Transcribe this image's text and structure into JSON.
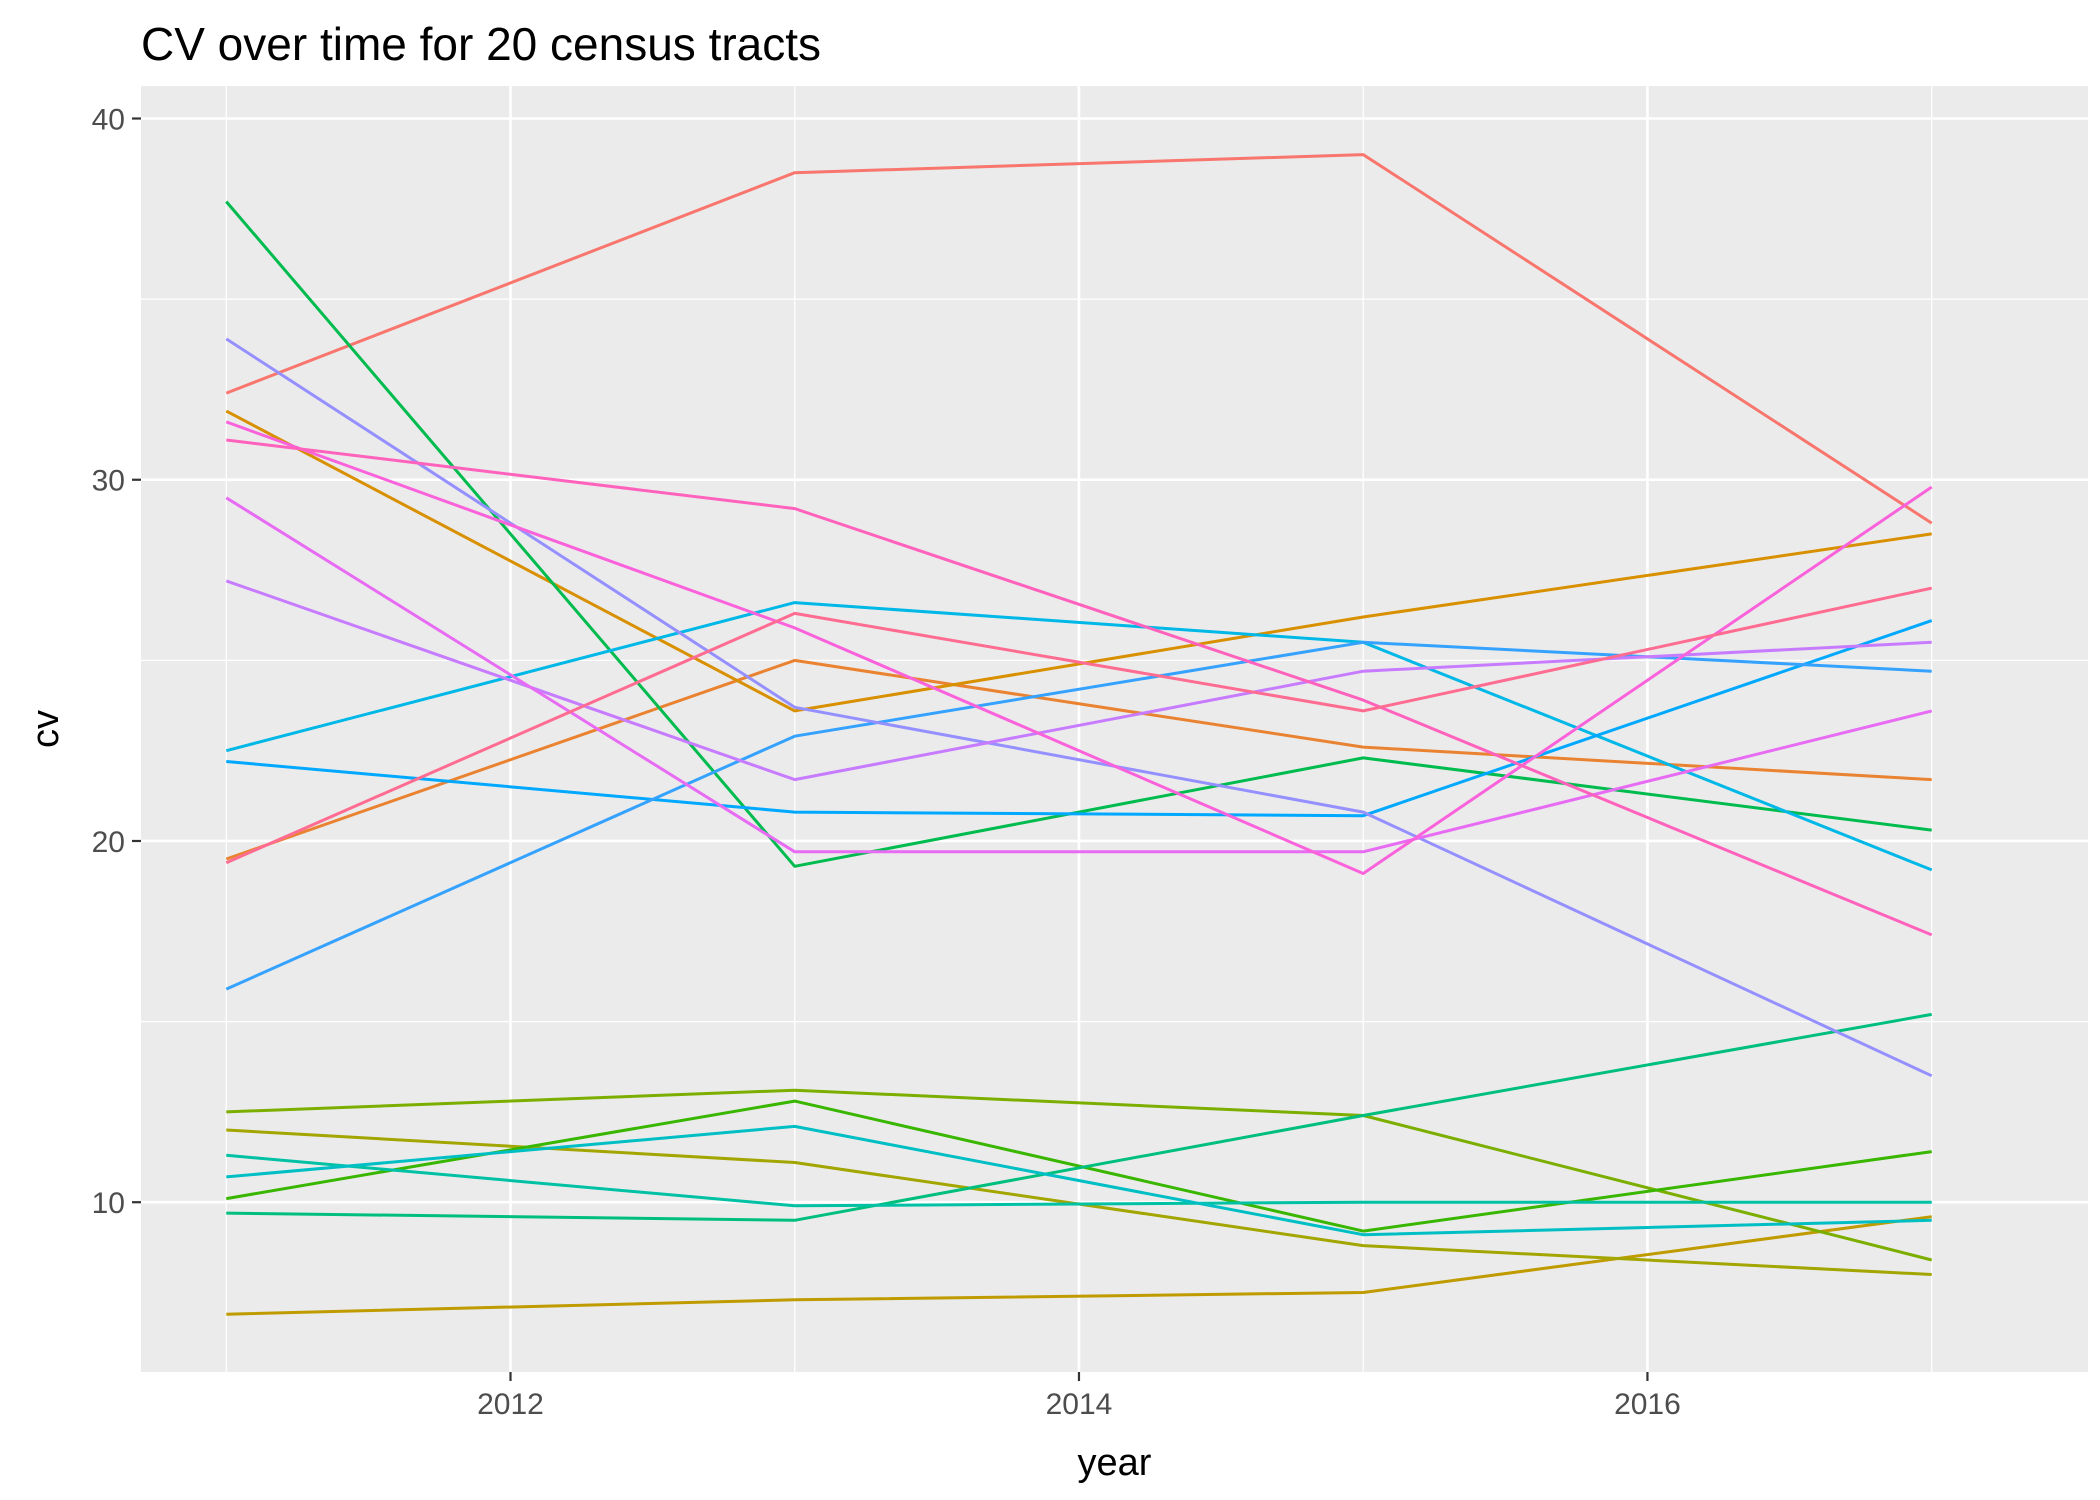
{
  "chart_data": {
    "type": "line",
    "title": "CV over time for 20 census tracts",
    "xlabel": "year",
    "ylabel": "cv",
    "x": [
      2011,
      2013,
      2015,
      2017
    ],
    "xlim": [
      2010.7,
      2017.55
    ],
    "ylim": [
      5.3,
      40.9
    ],
    "x_ticks": [
      2012,
      2014,
      2016
    ],
    "x_tick_labels": [
      "2012",
      "2014",
      "2016"
    ],
    "y_ticks": [
      10,
      20,
      30,
      40
    ],
    "y_tick_labels": [
      "10",
      "20",
      "30",
      "40"
    ],
    "grid": true,
    "legend": "none",
    "series": [
      {
        "color": "#F8766D",
        "values": [
          32.4,
          38.5,
          39.0,
          28.8
        ]
      },
      {
        "color": "#EA8331",
        "values": [
          19.5,
          25.0,
          22.6,
          21.7
        ]
      },
      {
        "color": "#D89000",
        "values": [
          31.9,
          23.6,
          26.2,
          28.5
        ]
      },
      {
        "color": "#C09B00",
        "values": [
          6.9,
          7.3,
          7.5,
          9.6
        ]
      },
      {
        "color": "#A3A500",
        "values": [
          12.0,
          11.1,
          8.8,
          8.0
        ]
      },
      {
        "color": "#7CAE00",
        "values": [
          12.5,
          13.1,
          12.4,
          8.4
        ]
      },
      {
        "color": "#39B600",
        "values": [
          10.1,
          12.8,
          9.2,
          11.4
        ]
      },
      {
        "color": "#00BB4E",
        "values": [
          37.7,
          19.3,
          22.3,
          20.3
        ]
      },
      {
        "color": "#00BF7D",
        "values": [
          9.7,
          9.5,
          12.4,
          15.2
        ]
      },
      {
        "color": "#00C1A3",
        "values": [
          11.3,
          9.9,
          10.0,
          10.0
        ]
      },
      {
        "color": "#00BFC4",
        "values": [
          10.7,
          12.1,
          9.1,
          9.5
        ]
      },
      {
        "color": "#00B8E7",
        "values": [
          22.5,
          26.6,
          25.5,
          19.2
        ]
      },
      {
        "color": "#00A9FF",
        "values": [
          22.2,
          20.8,
          20.7,
          26.1
        ]
      },
      {
        "color": "#35A2FF",
        "values": [
          15.9,
          22.9,
          25.5,
          24.7
        ]
      },
      {
        "color": "#9590FF",
        "values": [
          33.9,
          23.7,
          20.8,
          13.5
        ]
      },
      {
        "color": "#C77CFF",
        "values": [
          27.2,
          21.7,
          24.7,
          25.5
        ]
      },
      {
        "color": "#E76BF3",
        "values": [
          29.5,
          19.7,
          19.7,
          23.6
        ]
      },
      {
        "color": "#FA62DB",
        "values": [
          31.6,
          25.9,
          19.1,
          29.8
        ]
      },
      {
        "color": "#FF62BC",
        "values": [
          31.1,
          29.2,
          23.9,
          17.4
        ]
      },
      {
        "color": "#FF6C91",
        "values": [
          19.4,
          26.3,
          23.6,
          27.0
        ]
      }
    ]
  }
}
